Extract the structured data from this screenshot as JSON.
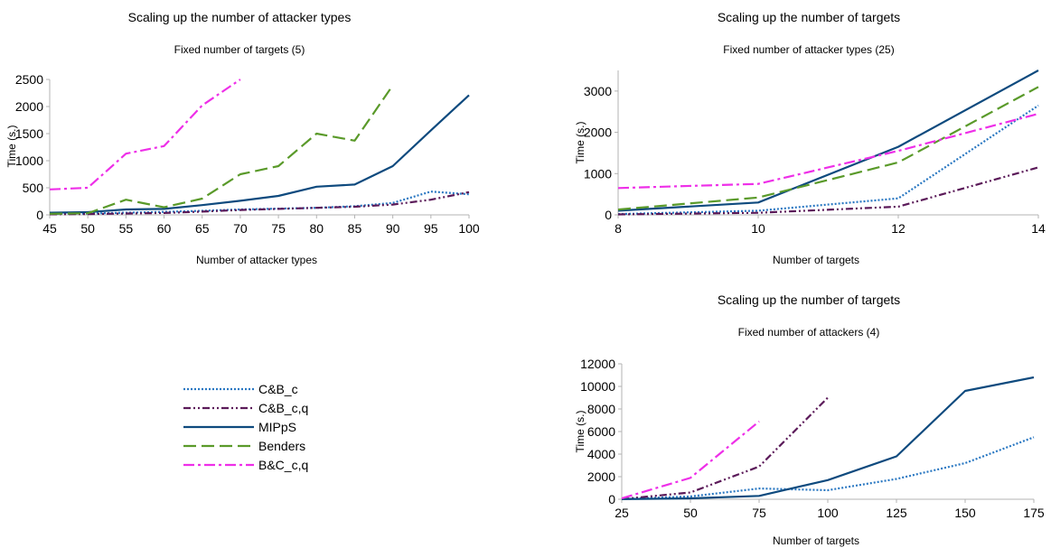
{
  "series_styles": [
    {
      "name": "C&B_c",
      "color": "#2a78c2",
      "dash": "dotted"
    },
    {
      "name": "C&B_c,q",
      "color": "#5b1a59",
      "dash": "dashdotdot"
    },
    {
      "name": "MIPpS",
      "color": "#0e4a7e",
      "dash": "solid"
    },
    {
      "name": "Benders",
      "color": "#5a9a2a",
      "dash": "longdash"
    },
    {
      "name": "B&C_c,q",
      "color": "#ee2fe8",
      "dash": "dashdot"
    }
  ],
  "legend": {
    "items": [
      "C&B_c",
      "C&B_c,q",
      "MIPpS",
      "Benders",
      "B&C_c,q"
    ],
    "placement": "middle-left"
  },
  "chart_data": [
    {
      "type": "line",
      "title": "Scaling up the number of attacker types",
      "subtitle": "Fixed number of targets (5)",
      "xlabel": "Number of attacker types",
      "ylabel": "Time (s.)",
      "x": [
        45,
        50,
        55,
        60,
        65,
        70,
        75,
        80,
        85,
        90,
        95,
        100
      ],
      "xticks": [
        45,
        50,
        55,
        60,
        65,
        70,
        75,
        80,
        85,
        90,
        95,
        100
      ],
      "yticks": [
        0,
        500,
        1000,
        1500,
        2000,
        2500
      ],
      "xlim": [
        45,
        100
      ],
      "ylim": [
        0,
        2500
      ],
      "grid": false,
      "series": [
        {
          "name": "C&B_c",
          "x": [
            45,
            50,
            55,
            60,
            65,
            70,
            75,
            80,
            85,
            90,
            95,
            100
          ],
          "values": [
            15,
            25,
            40,
            55,
            75,
            100,
            115,
            130,
            160,
            220,
            430,
            380
          ]
        },
        {
          "name": "C&B_c,q",
          "x": [
            45,
            50,
            55,
            60,
            65,
            70,
            75,
            80,
            85,
            90,
            95,
            100
          ],
          "values": [
            10,
            15,
            25,
            35,
            60,
            90,
            110,
            130,
            150,
            190,
            280,
            420
          ]
        },
        {
          "name": "MIPpS",
          "x": [
            45,
            50,
            55,
            60,
            65,
            70,
            75,
            80,
            85,
            90,
            95,
            100
          ],
          "values": [
            40,
            50,
            100,
            110,
            180,
            260,
            350,
            520,
            560,
            900,
            1560,
            2210
          ]
        },
        {
          "name": "Benders",
          "x": [
            45,
            50,
            55,
            60,
            65,
            70,
            75,
            80,
            85,
            90
          ],
          "values": [
            20,
            30,
            280,
            140,
            300,
            750,
            900,
            1500,
            1370,
            2390
          ]
        },
        {
          "name": "B&C_c,q",
          "x": [
            45,
            50,
            55,
            60,
            65,
            70
          ],
          "values": [
            470,
            500,
            1130,
            1270,
            2020,
            2500
          ]
        }
      ]
    },
    {
      "type": "line",
      "title": "Scaling up the number of targets",
      "subtitle": "Fixed number of attacker types (25)",
      "xlabel": "Number of targets",
      "ylabel": "Time (s.)",
      "x": [
        8,
        10,
        12,
        14
      ],
      "xticks": [
        8,
        10,
        12,
        14
      ],
      "yticks": [
        0,
        1000,
        2000,
        3000
      ],
      "xlim": [
        8,
        14
      ],
      "ylim": [
        0,
        3500
      ],
      "grid": false,
      "series": [
        {
          "name": "C&B_c",
          "x": [
            8,
            10,
            12,
            14
          ],
          "values": [
            20,
            100,
            400,
            2650
          ]
        },
        {
          "name": "C&B_c,q",
          "x": [
            8,
            10,
            12,
            14
          ],
          "values": [
            10,
            50,
            200,
            1150
          ]
        },
        {
          "name": "MIPpS",
          "x": [
            8,
            10,
            12,
            14
          ],
          "values": [
            100,
            300,
            1650,
            3500
          ]
        },
        {
          "name": "Benders",
          "x": [
            8,
            10,
            12,
            14
          ],
          "values": [
            130,
            420,
            1270,
            3100
          ]
        },
        {
          "name": "B&C_c,q",
          "x": [
            8,
            10,
            12,
            14
          ],
          "values": [
            650,
            750,
            1550,
            2450
          ]
        }
      ]
    },
    {
      "type": "line",
      "title": "Scaling up the number of targets",
      "subtitle": "Fixed number of attackers (4)",
      "xlabel": "Number of targets",
      "ylabel": "Time (s.)",
      "x": [
        25,
        50,
        75,
        100,
        125,
        150,
        175
      ],
      "xticks": [
        25,
        50,
        75,
        100,
        125,
        150,
        175
      ],
      "yticks": [
        0,
        2000,
        4000,
        6000,
        8000,
        10000,
        12000
      ],
      "xlim": [
        25,
        175
      ],
      "ylim": [
        0,
        12000
      ],
      "grid": false,
      "series": [
        {
          "name": "C&B_c",
          "x": [
            25,
            50,
            75,
            100,
            125,
            150,
            175
          ],
          "values": [
            20,
            250,
            950,
            800,
            1800,
            3200,
            5500
          ]
        },
        {
          "name": "C&B_c,q",
          "x": [
            25,
            50,
            75,
            100
          ],
          "values": [
            20,
            600,
            2900,
            9000
          ]
        },
        {
          "name": "MIPpS",
          "x": [
            25,
            50,
            75,
            100,
            125,
            150,
            175
          ],
          "values": [
            10,
            80,
            300,
            1700,
            3800,
            9600,
            10800
          ]
        },
        {
          "name": "B&C_c,q",
          "x": [
            25,
            50,
            75
          ],
          "values": [
            80,
            1900,
            6900
          ]
        }
      ]
    }
  ]
}
